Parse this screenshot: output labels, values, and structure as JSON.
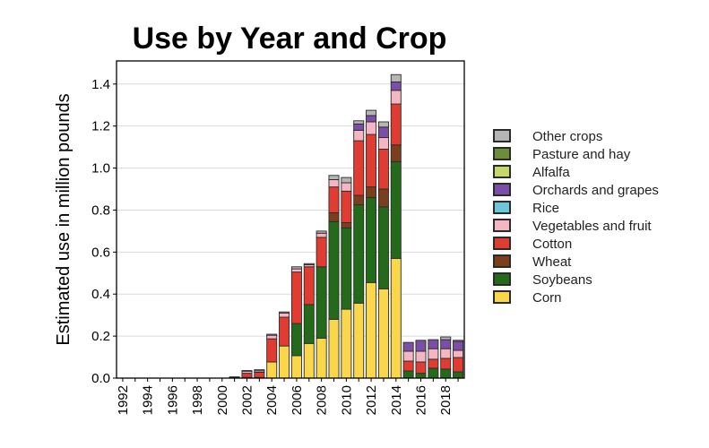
{
  "chart_data": {
    "type": "bar",
    "stacked": true,
    "title": "Use by Year and Crop",
    "xlabel": "",
    "ylabel": "Estimated use in million pounds",
    "ylim": [
      0,
      1.51
    ],
    "yticks": [
      0.0,
      0.2,
      0.4,
      0.6,
      0.8,
      1.0,
      1.2,
      1.4
    ],
    "ytick_labels": [
      "0.0",
      "0.2",
      "0.4",
      "0.6",
      "0.8",
      "1.0",
      "1.2",
      "1.4"
    ],
    "grid": "horizontal",
    "legend_position": "right",
    "categories": [
      1992,
      1993,
      1994,
      1995,
      1996,
      1997,
      1998,
      1999,
      2000,
      2001,
      2002,
      2003,
      2004,
      2005,
      2006,
      2007,
      2008,
      2009,
      2010,
      2011,
      2012,
      2013,
      2014,
      2015,
      2016,
      2017,
      2018,
      2019
    ],
    "xtick_labels": [
      "1992",
      "1994",
      "1996",
      "1998",
      "2000",
      "2002",
      "2004",
      "2006",
      "2008",
      "2010",
      "2012",
      "2014",
      "2016",
      "2018"
    ],
    "series": [
      {
        "name": "Corn",
        "color": "#f9d64a",
        "values": [
          0,
          0,
          0,
          0,
          0,
          0,
          0,
          0,
          0,
          0,
          0.003,
          0.003,
          0.077,
          0.153,
          0.107,
          0.165,
          0.19,
          0.28,
          0.328,
          0.357,
          0.455,
          0.425,
          0.57,
          0,
          0,
          0,
          0,
          0
        ]
      },
      {
        "name": "Soybeans",
        "color": "#236b1a",
        "values": [
          0,
          0,
          0,
          0,
          0,
          0,
          0,
          0,
          0,
          0,
          0,
          0,
          0,
          0,
          0.153,
          0.185,
          0.34,
          0.465,
          0.387,
          0.468,
          0.405,
          0.39,
          0.46,
          0.034,
          0.023,
          0.047,
          0.043,
          0.03
        ]
      },
      {
        "name": "Wheat",
        "color": "#7b3f1e",
        "values": [
          0,
          0,
          0,
          0,
          0,
          0,
          0,
          0,
          0,
          0,
          0,
          0,
          0,
          0,
          0,
          0,
          0,
          0.042,
          0.025,
          0.045,
          0.05,
          0.085,
          0.08,
          0,
          0,
          0,
          0,
          0
        ]
      },
      {
        "name": "Cotton",
        "color": "#e03c31",
        "values": [
          0,
          0,
          0,
          0,
          0,
          0,
          0,
          0,
          0,
          0.004,
          0.02,
          0.025,
          0.11,
          0.137,
          0.245,
          0.18,
          0.14,
          0.123,
          0.15,
          0.26,
          0.25,
          0.19,
          0.195,
          0.047,
          0.054,
          0.043,
          0.051,
          0.068
        ]
      },
      {
        "name": "Vegetables and fruit",
        "color": "#f4b6c2",
        "values": [
          0,
          0,
          0,
          0,
          0,
          0,
          0,
          0,
          0,
          0,
          0.01,
          0.007,
          0.017,
          0.02,
          0.015,
          0.01,
          0.02,
          0.035,
          0.04,
          0.05,
          0.06,
          0.055,
          0.065,
          0.047,
          0.051,
          0.05,
          0.046,
          0.034
        ]
      },
      {
        "name": "Rice",
        "color": "#6cc5d8",
        "values": [
          0,
          0,
          0,
          0,
          0,
          0,
          0,
          0,
          0,
          0,
          0,
          0,
          0,
          0,
          0,
          0,
          0,
          0,
          0,
          0,
          0,
          0,
          0,
          0,
          0,
          0,
          0,
          0
        ]
      },
      {
        "name": "Orchards and grapes",
        "color": "#7b4ea8",
        "values": [
          0,
          0,
          0,
          0,
          0,
          0,
          0,
          0,
          0,
          0,
          0,
          0,
          0,
          0,
          0,
          0,
          0,
          0,
          0,
          0.03,
          0.03,
          0.05,
          0.04,
          0.042,
          0.052,
          0.043,
          0.043,
          0.043
        ]
      },
      {
        "name": "Alfalfa",
        "color": "#c5d96b",
        "values": [
          0,
          0,
          0,
          0,
          0,
          0,
          0,
          0,
          0,
          0,
          0,
          0,
          0,
          0,
          0,
          0,
          0,
          0,
          0,
          0,
          0,
          0,
          0,
          0,
          0,
          0,
          0,
          0
        ]
      },
      {
        "name": "Pasture and hay",
        "color": "#6b8e3a",
        "values": [
          0,
          0,
          0,
          0,
          0,
          0,
          0,
          0,
          0,
          0,
          0,
          0,
          0,
          0,
          0,
          0,
          0,
          0,
          0,
          0,
          0,
          0,
          0,
          0,
          0,
          0,
          0,
          0
        ]
      },
      {
        "name": "Other crops",
        "color": "#b5b5b5",
        "values": [
          0,
          0,
          0,
          0,
          0,
          0,
          0,
          0,
          0,
          0.002,
          0.003,
          0.005,
          0.005,
          0.005,
          0.01,
          0.005,
          0.01,
          0.02,
          0.025,
          0.015,
          0.025,
          0.025,
          0.035,
          0,
          0,
          0,
          0.013,
          0.005
        ]
      }
    ]
  }
}
